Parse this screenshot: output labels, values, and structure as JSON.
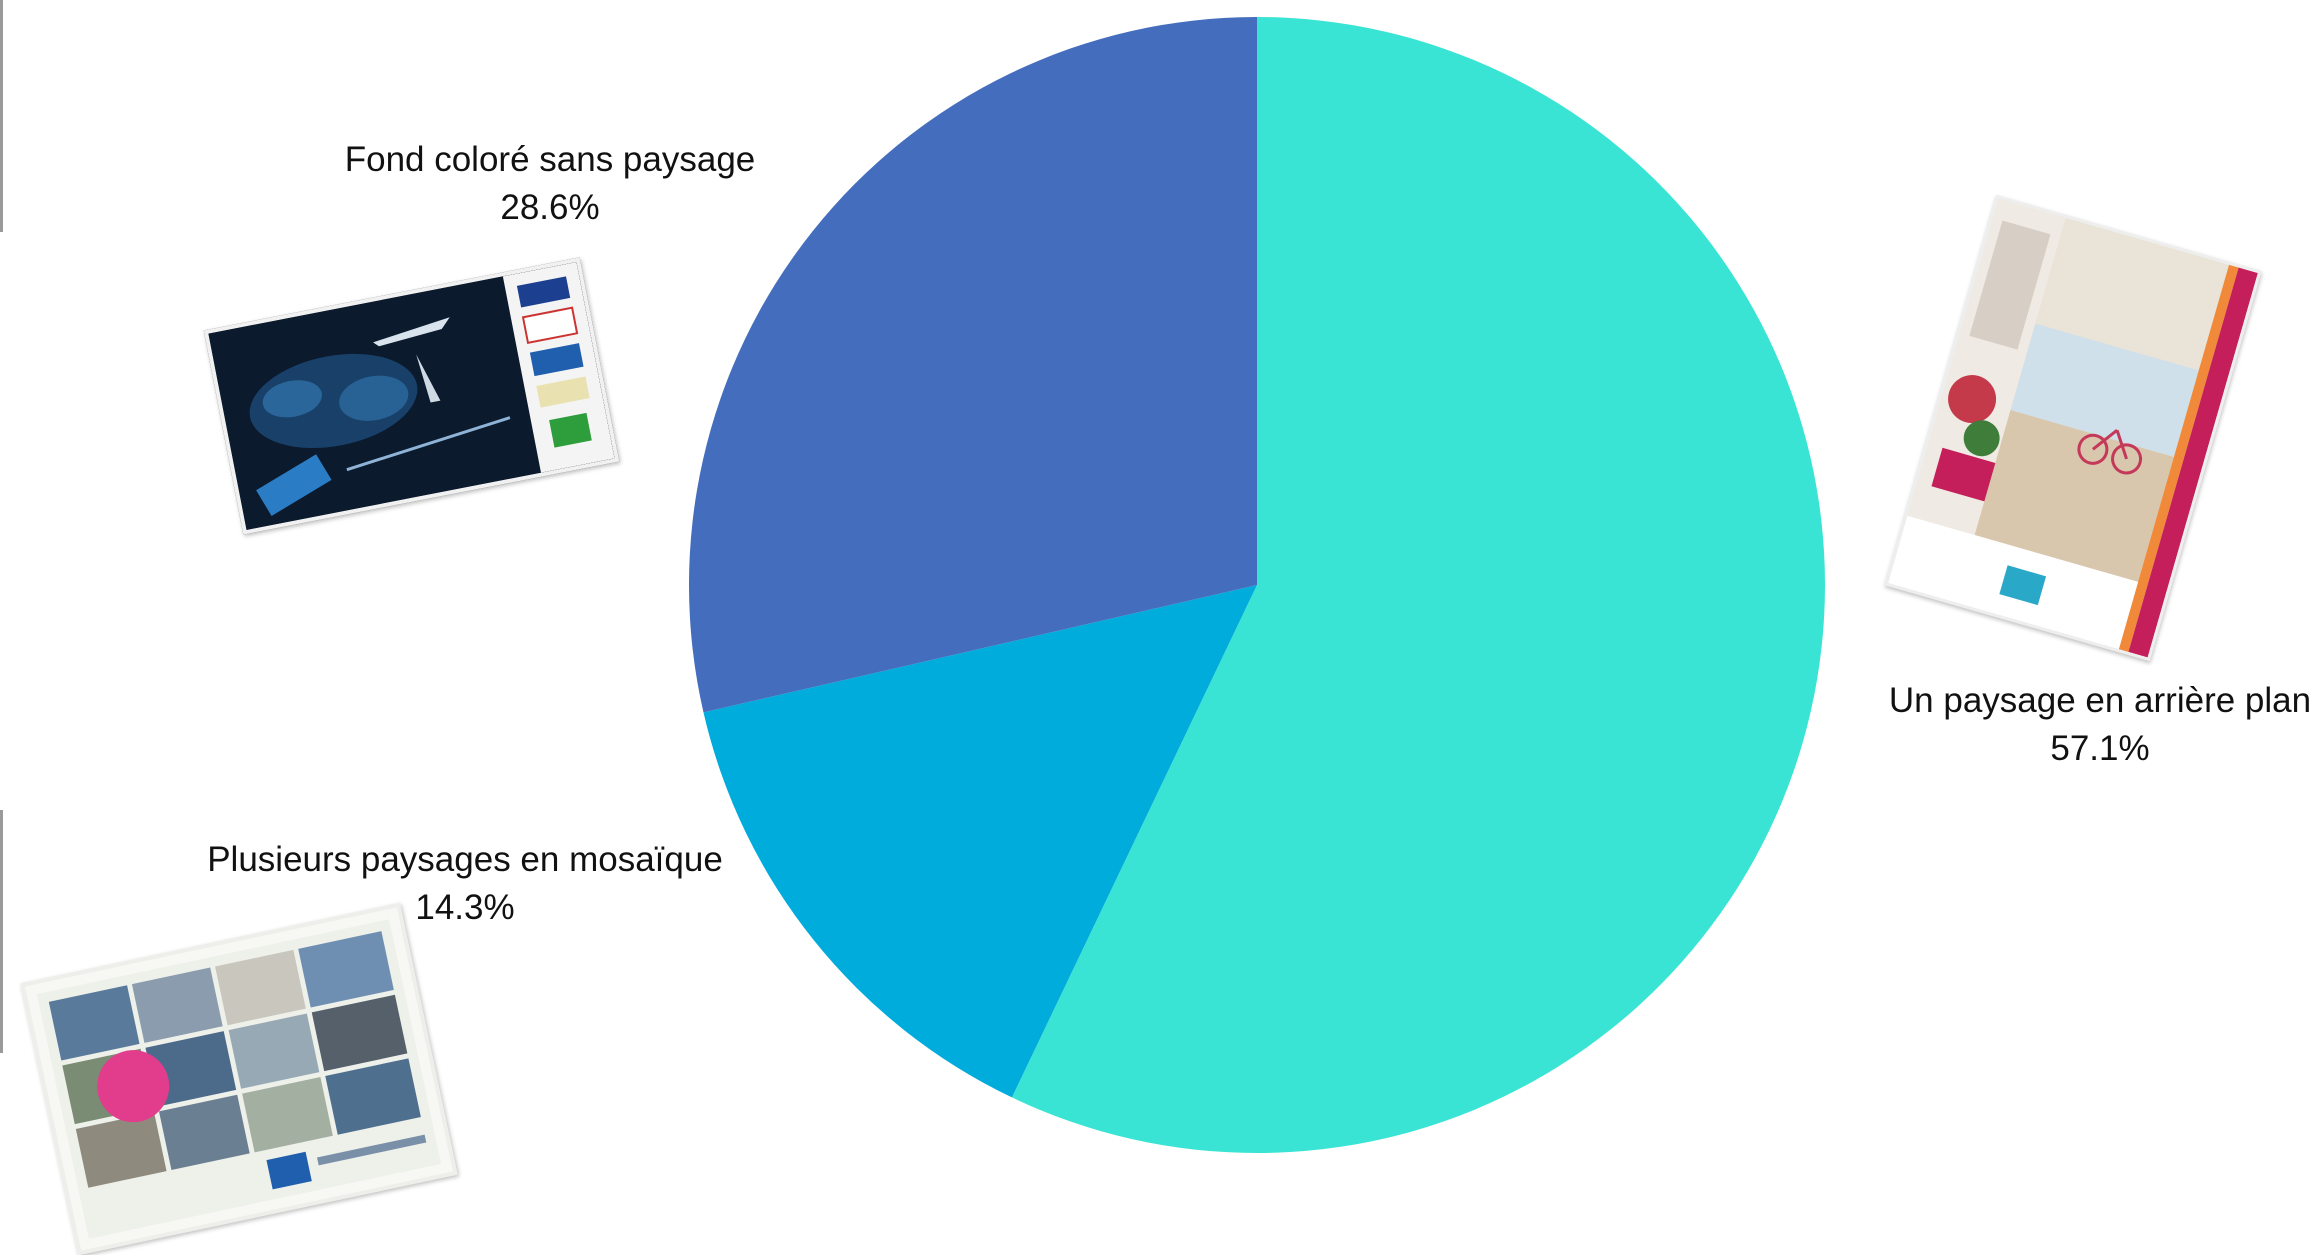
{
  "chart_data": {
    "type": "pie",
    "title": "",
    "slices": [
      {
        "label": "Un paysage en arrière plan",
        "pct_label": "57.1%",
        "value": 57.1,
        "color": "#3ae4d4"
      },
      {
        "label": "Plusieurs paysages en mosaïque",
        "pct_label": "14.3%",
        "value": 14.3,
        "color": "#00acdc"
      },
      {
        "label": "Fond coloré sans paysage",
        "pct_label": "28.6%",
        "value": 28.6,
        "color": "#446dbd"
      }
    ],
    "start_angle_deg": 0,
    "direction": "clockwise",
    "legend": "none"
  },
  "thumbnails": {
    "fond": {
      "description_icon": "aerospace-valley-poster-thumbnail"
    },
    "mosaique": {
      "description_icon": "metropole-mosaic-poster-thumbnail"
    },
    "arriere": {
      "description_icon": "beach-cyclist-brochure-thumbnail"
    }
  }
}
